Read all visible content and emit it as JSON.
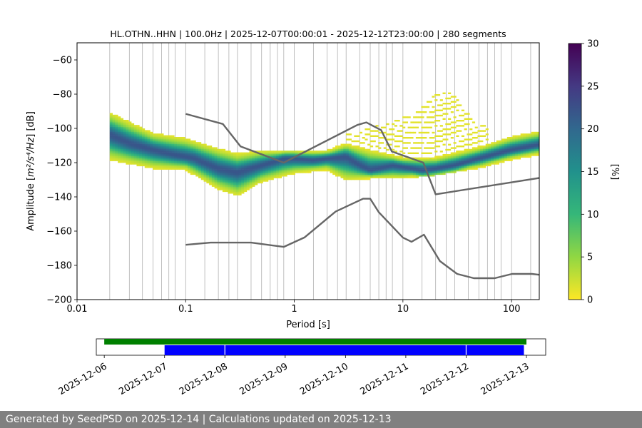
{
  "chart_data": [
    {
      "type": "heatmap",
      "title": "HL.OTHN..HHN | 100.0Hz | 2025-12-07T00:00:01 - 2025-12-12T23:00:00 | 280 segments",
      "xlabel": "Period [s]",
      "ylabel_pre": "Amplitude [",
      "ylabel_math": "m²/s⁴/Hz",
      "ylabel_post": "] [dB]",
      "xscale": "log",
      "xlim": [
        0.01,
        180
      ],
      "ylim": [
        -200,
        -50
      ],
      "xticks": [
        {
          "value": 0.01,
          "label": "0.01"
        },
        {
          "value": 0.1,
          "label": "0.1"
        },
        {
          "value": 1,
          "label": "1"
        },
        {
          "value": 10,
          "label": "10"
        },
        {
          "value": 100,
          "label": "100"
        }
      ],
      "yticks": [
        -200,
        -180,
        -160,
        -140,
        -120,
        -100,
        -80,
        -60
      ],
      "grid": true,
      "period_gridlines": [
        0.02,
        0.0303,
        0.04,
        0.05,
        0.06,
        0.07,
        0.08,
        0.1,
        0.15,
        0.2,
        0.25,
        0.3,
        0.4,
        0.5,
        0.6,
        0.7,
        0.8,
        1,
        1.5,
        2,
        2.5,
        3,
        4,
        5,
        6,
        7,
        8,
        10,
        15,
        20,
        25,
        30,
        40,
        50,
        60,
        70,
        80,
        100,
        150
      ],
      "colorbar": {
        "label": "[%]",
        "min": 0,
        "max": 30,
        "ticks": [
          0,
          5,
          10,
          15,
          20,
          25,
          30
        ],
        "colormap": "viridis_r",
        "stops": [
          "#fde725",
          "#90d743",
          "#35b779",
          "#21918c",
          "#31688e",
          "#443983",
          "#440154"
        ]
      },
      "mode_curve": {
        "period": [
          0.02,
          0.03,
          0.05,
          0.08,
          0.12,
          0.2,
          0.3,
          0.5,
          0.8,
          1,
          1.5,
          2,
          3,
          4,
          5,
          6,
          8,
          10,
          15,
          20,
          30,
          50,
          100,
          180
        ],
        "db": [
          -104,
          -109,
          -113,
          -116,
          -118,
          -124,
          -126,
          -122,
          -118,
          -118,
          -119,
          -118,
          -117,
          -122,
          -125,
          -124,
          -122,
          -123,
          -125,
          -124,
          -122,
          -118,
          -113,
          -110
        ]
      },
      "band_spread": {
        "period": [
          0.02,
          0.05,
          0.1,
          0.2,
          0.3,
          0.5,
          1,
          2,
          3,
          5,
          10,
          20,
          50,
          100,
          180
        ],
        "upper_db": [
          -92,
          -104,
          -107,
          -113,
          -116,
          -114,
          -114,
          -114,
          -110,
          -114,
          -118,
          -118,
          -112,
          -106,
          -103
        ],
        "lower_db": [
          -118,
          -123,
          -124,
          -135,
          -139,
          -131,
          -126,
          -124,
          -130,
          -129,
          -129,
          -127,
          -123,
          -118,
          -115
        ]
      },
      "high_excursion": {
        "period": [
          3,
          5,
          8,
          12,
          16,
          20,
          25,
          30,
          40,
          60
        ],
        "db": [
          -104,
          -100,
          -96,
          -92,
          -86,
          -80,
          -78,
          -82,
          -92,
          -100
        ]
      },
      "nhnm": {
        "period": [
          0.1,
          0.22,
          0.32,
          0.8,
          3.8,
          4.6,
          6.3,
          7.9,
          15.4,
          20,
          354.8
        ],
        "db": [
          -91.5,
          -97.4,
          -110.5,
          -120,
          -98,
          -96.5,
          -101,
          -113.5,
          -120,
          -138.5,
          -126
        ]
      },
      "nlnm": {
        "period": [
          0.1,
          0.17,
          0.4,
          0.8,
          1.24,
          2.4,
          4.3,
          5,
          6,
          10,
          12,
          15.6,
          21.9,
          31.6,
          45,
          70,
          101,
          154,
          180
        ],
        "db": [
          -168,
          -166.7,
          -166.7,
          -169.2,
          -163.7,
          -148.6,
          -141.1,
          -141.1,
          -149,
          -163.8,
          -166.2,
          -162.1,
          -177.5,
          -185,
          -187.5,
          -187.5,
          -185,
          -185,
          -185.5
        ]
      }
    },
    {
      "type": "timeline",
      "xtick_labels": [
        "2025-12-06",
        "2025-12-07",
        "2025-12-08",
        "2025-12-09",
        "2025-12-10",
        "2025-12-11",
        "2025-12-12",
        "2025-12-13"
      ],
      "range": [
        "2025-12-05T20:50",
        "2025-12-13T07:40"
      ],
      "available_data": {
        "color": "#008000",
        "spans": [
          [
            "2025-12-06T00:00",
            "2025-12-13T00:00"
          ]
        ]
      },
      "psd_segments": {
        "color": "#0000ff",
        "spans": [
          [
            "2025-12-07T00:00",
            "2025-12-07T23:50"
          ],
          [
            "2025-12-08T00:10",
            "2025-12-11T23:50"
          ],
          [
            "2025-12-12T00:10",
            "2025-12-12T23:00"
          ]
        ]
      }
    }
  ],
  "footer": {
    "text": "Generated by SeedPSD on 2025-12-14 | Calculations updated on 2025-12-13"
  }
}
